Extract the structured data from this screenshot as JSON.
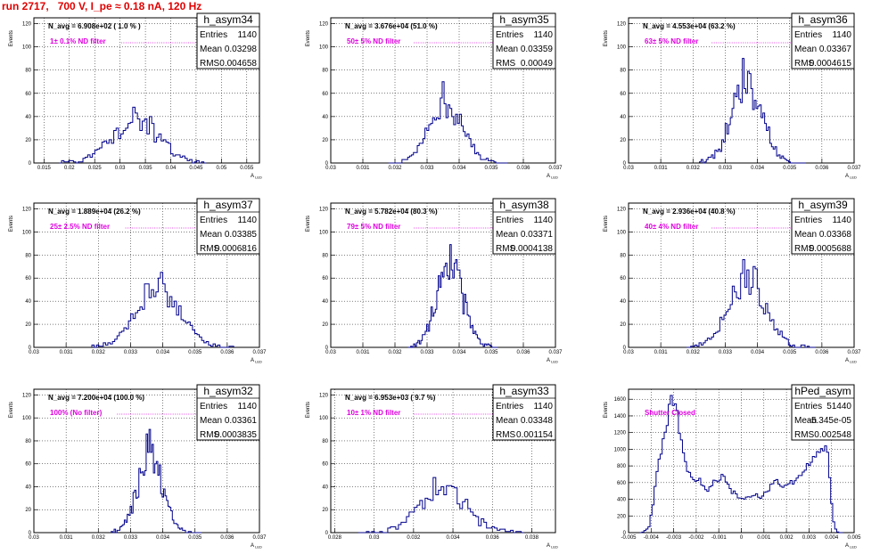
{
  "title": "run 2717,   700 V, I_pe ≈ 0.18 nA, 120 Hz",
  "chart_data": [
    {
      "type": "bar",
      "name": "h_asym34",
      "n_avg": "N_avg = 6.908e+02 ( 1.0 % )",
      "filter": "1± 0.1% ND filter",
      "stats": {
        "Entries": "1140",
        "Mean": "0.03298",
        "RMS": "0.004658"
      },
      "xlabel": "A_{LED}",
      "ylabel": "Events",
      "xlim": [
        0.013,
        0.0575
      ],
      "ylim": [
        0,
        125
      ],
      "xticks": [
        "0.015",
        "0.02",
        "0.025",
        "0.03",
        "0.035",
        "0.04",
        "0.045",
        "0.05",
        "0.055"
      ],
      "yticks": [
        "0",
        "20",
        "40",
        "60",
        "80",
        "100",
        "120"
      ],
      "mean": 0.03298,
      "rms": 0.004658,
      "peak": 48,
      "entries": 1140,
      "bins": 62,
      "range": [
        0.018,
        0.047
      ]
    },
    {
      "type": "bar",
      "name": "h_asym35",
      "n_avg": "N_avg = 3.676e+04 (51.0 %)",
      "filter": "50± 5% ND filter",
      "stats": {
        "Entries": "1140",
        "Mean": "0.03359",
        "RMS": "0.00049"
      },
      "xlabel": "A_{LED}",
      "ylabel": "Events",
      "xlim": [
        0.03,
        0.037
      ],
      "ylim": [
        0,
        125
      ],
      "xticks": [
        "0.03",
        "0.031",
        "0.032",
        "0.033",
        "0.034",
        "0.035",
        "0.036",
        "0.037"
      ],
      "yticks": [
        "0",
        "20",
        "40",
        "60",
        "80",
        "100",
        "120"
      ],
      "mean": 0.03359,
      "rms": 0.00049,
      "peak": 70,
      "entries": 1140,
      "bins": 62,
      "range": [
        0.0318,
        0.0355
      ]
    },
    {
      "type": "bar",
      "name": "h_asym36",
      "n_avg": "N_avg = 4.553e+04 (63.2 %)",
      "filter": "63± 5% ND filter",
      "stats": {
        "Entries": "1140",
        "Mean": "0.03367",
        "RMS": "0.0004615"
      },
      "xlabel": "A_{LED}",
      "ylabel": "Events",
      "xlim": [
        0.03,
        0.037
      ],
      "ylim": [
        0,
        125
      ],
      "xticks": [
        "0.03",
        "0.031",
        "0.032",
        "0.033",
        "0.034",
        "0.035",
        "0.036",
        "0.037"
      ],
      "yticks": [
        "0",
        "20",
        "40",
        "60",
        "80",
        "100",
        "120"
      ],
      "mean": 0.03367,
      "rms": 0.0004615,
      "peak": 90,
      "entries": 1140,
      "bins": 62,
      "range": [
        0.0322,
        0.0355
      ]
    },
    {
      "type": "bar",
      "name": "h_asym37",
      "n_avg": "N_avg = 1.889e+04 (26.2 %)",
      "filter": "25± 2.5% ND filter",
      "stats": {
        "Entries": "1140",
        "Mean": "0.03385",
        "RMS": "0.0006816"
      },
      "xlabel": "A_{LED}",
      "ylabel": "Events",
      "xlim": [
        0.03,
        0.037
      ],
      "ylim": [
        0,
        125
      ],
      "xticks": [
        "0.03",
        "0.031",
        "0.032",
        "0.033",
        "0.034",
        "0.035",
        "0.036",
        "0.037"
      ],
      "yticks": [
        "0",
        "20",
        "40",
        "60",
        "80",
        "100",
        "120"
      ],
      "mean": 0.03385,
      "rms": 0.0006816,
      "peak": 65,
      "entries": 1140,
      "bins": 62,
      "range": [
        0.0318,
        0.0362
      ]
    },
    {
      "type": "bar",
      "name": "h_asym38",
      "n_avg": "N_avg = 5.782e+04 (80.3 %)",
      "filter": "79± 5% ND filter",
      "stats": {
        "Entries": "1140",
        "Mean": "0.03371",
        "RMS": "0.0004138"
      },
      "xlabel": "A_{LED}",
      "ylabel": "Events",
      "xlim": [
        0.03,
        0.037
      ],
      "ylim": [
        0,
        125
      ],
      "xticks": [
        "0.03",
        "0.031",
        "0.032",
        "0.033",
        "0.034",
        "0.035",
        "0.036",
        "0.037"
      ],
      "yticks": [
        "0",
        "20",
        "40",
        "60",
        "80",
        "100",
        "120"
      ],
      "mean": 0.03371,
      "rms": 0.0004138,
      "peak": 89,
      "entries": 1140,
      "bins": 62,
      "range": [
        0.0324,
        0.0352
      ]
    },
    {
      "type": "bar",
      "name": "h_asym39",
      "n_avg": "N_avg = 2.936e+04 (40.8 %)",
      "filter": "40± 4% ND filter",
      "stats": {
        "Entries": "1140",
        "Mean": "0.03368",
        "RMS": "0.0005688"
      },
      "xlabel": "A_{LED}",
      "ylabel": "Events",
      "xlim": [
        0.03,
        0.037
      ],
      "ylim": [
        0,
        125
      ],
      "xticks": [
        "0.03",
        "0.031",
        "0.032",
        "0.033",
        "0.034",
        "0.035",
        "0.036",
        "0.037"
      ],
      "yticks": [
        "0",
        "20",
        "40",
        "60",
        "80",
        "100",
        "120"
      ],
      "mean": 0.03368,
      "rms": 0.0005688,
      "peak": 76,
      "entries": 1140,
      "bins": 62,
      "range": [
        0.0318,
        0.0358
      ]
    },
    {
      "type": "bar",
      "name": "h_asym32",
      "n_avg": "N_avg = 7.200e+04 (100.0 %)",
      "filter": "100% (No filter)",
      "stats": {
        "Entries": "1140",
        "Mean": "0.03361",
        "RMS": "0.0003835"
      },
      "xlabel": "A_{LED}",
      "ylabel": "Events",
      "xlim": [
        0.03,
        0.037
      ],
      "ylim": [
        0,
        125
      ],
      "xticks": [
        "0.03",
        "0.031",
        "0.032",
        "0.033",
        "0.034",
        "0.035",
        "0.036",
        "0.037"
      ],
      "yticks": [
        "0",
        "20",
        "40",
        "60",
        "80",
        "100",
        "120"
      ],
      "mean": 0.03361,
      "rms": 0.0003835,
      "peak": 90,
      "entries": 1140,
      "bins": 62,
      "range": [
        0.0324,
        0.0352
      ]
    },
    {
      "type": "bar",
      "name": "h_asym33",
      "n_avg": "N_avg = 6.953e+03 ( 9.7 %)",
      "filter": "10± 1% ND filter",
      "stats": {
        "Entries": "1140",
        "Mean": "0.03348",
        "RMS": "0.001154"
      },
      "xlabel": "A_{LED}",
      "ylabel": "Events",
      "xlim": [
        0.0278,
        0.0392
      ],
      "ylim": [
        0,
        125
      ],
      "xticks": [
        "0.028",
        "0.03",
        "0.032",
        "0.034",
        "0.036",
        "0.038"
      ],
      "yticks": [
        "0",
        "20",
        "40",
        "60",
        "80",
        "100",
        "120"
      ],
      "mean": 0.03348,
      "rms": 0.001154,
      "peak": 48,
      "entries": 1140,
      "bins": 62,
      "range": [
        0.0292,
        0.0376
      ]
    },
    {
      "type": "bar",
      "name": "hPed_asym",
      "n_avg": "",
      "filter": "Shutter Closed",
      "stats": {
        "Entries": "51440",
        "Mean": "-5.345e-05",
        "RMS": "0.002548"
      },
      "xlabel": "A_{LED}",
      "ylabel": "Events",
      "xlim": [
        -0.005,
        0.005
      ],
      "ylim": [
        0,
        1720
      ],
      "xticks": [
        "-0.005",
        "-0.004",
        "-0.003",
        "-0.002",
        "-0.001",
        "0",
        "0.001",
        "0.002",
        "0.003",
        "0.004",
        "0.005"
      ],
      "yticks": [
        "0",
        "200",
        "400",
        "600",
        "800",
        "1000",
        "1200",
        "1400",
        "1600"
      ],
      "ped_shape": [
        [
          -0.0044,
          0
        ],
        [
          -0.0041,
          60
        ],
        [
          -0.0039,
          350
        ],
        [
          -0.0037,
          850
        ],
        [
          -0.0035,
          1050
        ],
        [
          -0.0033,
          1300
        ],
        [
          -0.0032,
          1450
        ],
        [
          -0.00305,
          1630
        ],
        [
          -0.0029,
          1500
        ],
        [
          -0.0027,
          1150
        ],
        [
          -0.0025,
          850
        ],
        [
          -0.0023,
          720
        ],
        [
          -0.0021,
          660
        ],
        [
          -0.0019,
          640
        ],
        [
          -0.0017,
          580
        ],
        [
          -0.0015,
          520
        ],
        [
          -0.0013,
          580
        ],
        [
          -0.0011,
          620
        ],
        [
          -0.0009,
          680
        ],
        [
          -0.0007,
          650
        ],
        [
          -0.0005,
          520
        ],
        [
          -0.0003,
          470
        ],
        [
          -0.0001,
          420
        ],
        [
          0.0001,
          400
        ],
        [
          0.0003,
          430
        ],
        [
          0.0005,
          470
        ],
        [
          0.0007,
          460
        ],
        [
          0.0009,
          430
        ],
        [
          0.0011,
          470
        ],
        [
          0.0013,
          560
        ],
        [
          0.0015,
          610
        ],
        [
          0.0017,
          600
        ],
        [
          0.0019,
          550
        ],
        [
          0.0021,
          580
        ],
        [
          0.0023,
          600
        ],
        [
          0.0025,
          650
        ],
        [
          0.0027,
          720
        ],
        [
          0.0029,
          800
        ],
        [
          0.0031,
          850
        ],
        [
          0.0033,
          900
        ],
        [
          0.0035,
          980
        ],
        [
          0.0037,
          1050
        ],
        [
          0.0038,
          1000
        ],
        [
          0.0039,
          700
        ],
        [
          0.004,
          350
        ],
        [
          0.0041,
          120
        ],
        [
          0.0042,
          30
        ],
        [
          0.0043,
          0
        ]
      ]
    }
  ]
}
